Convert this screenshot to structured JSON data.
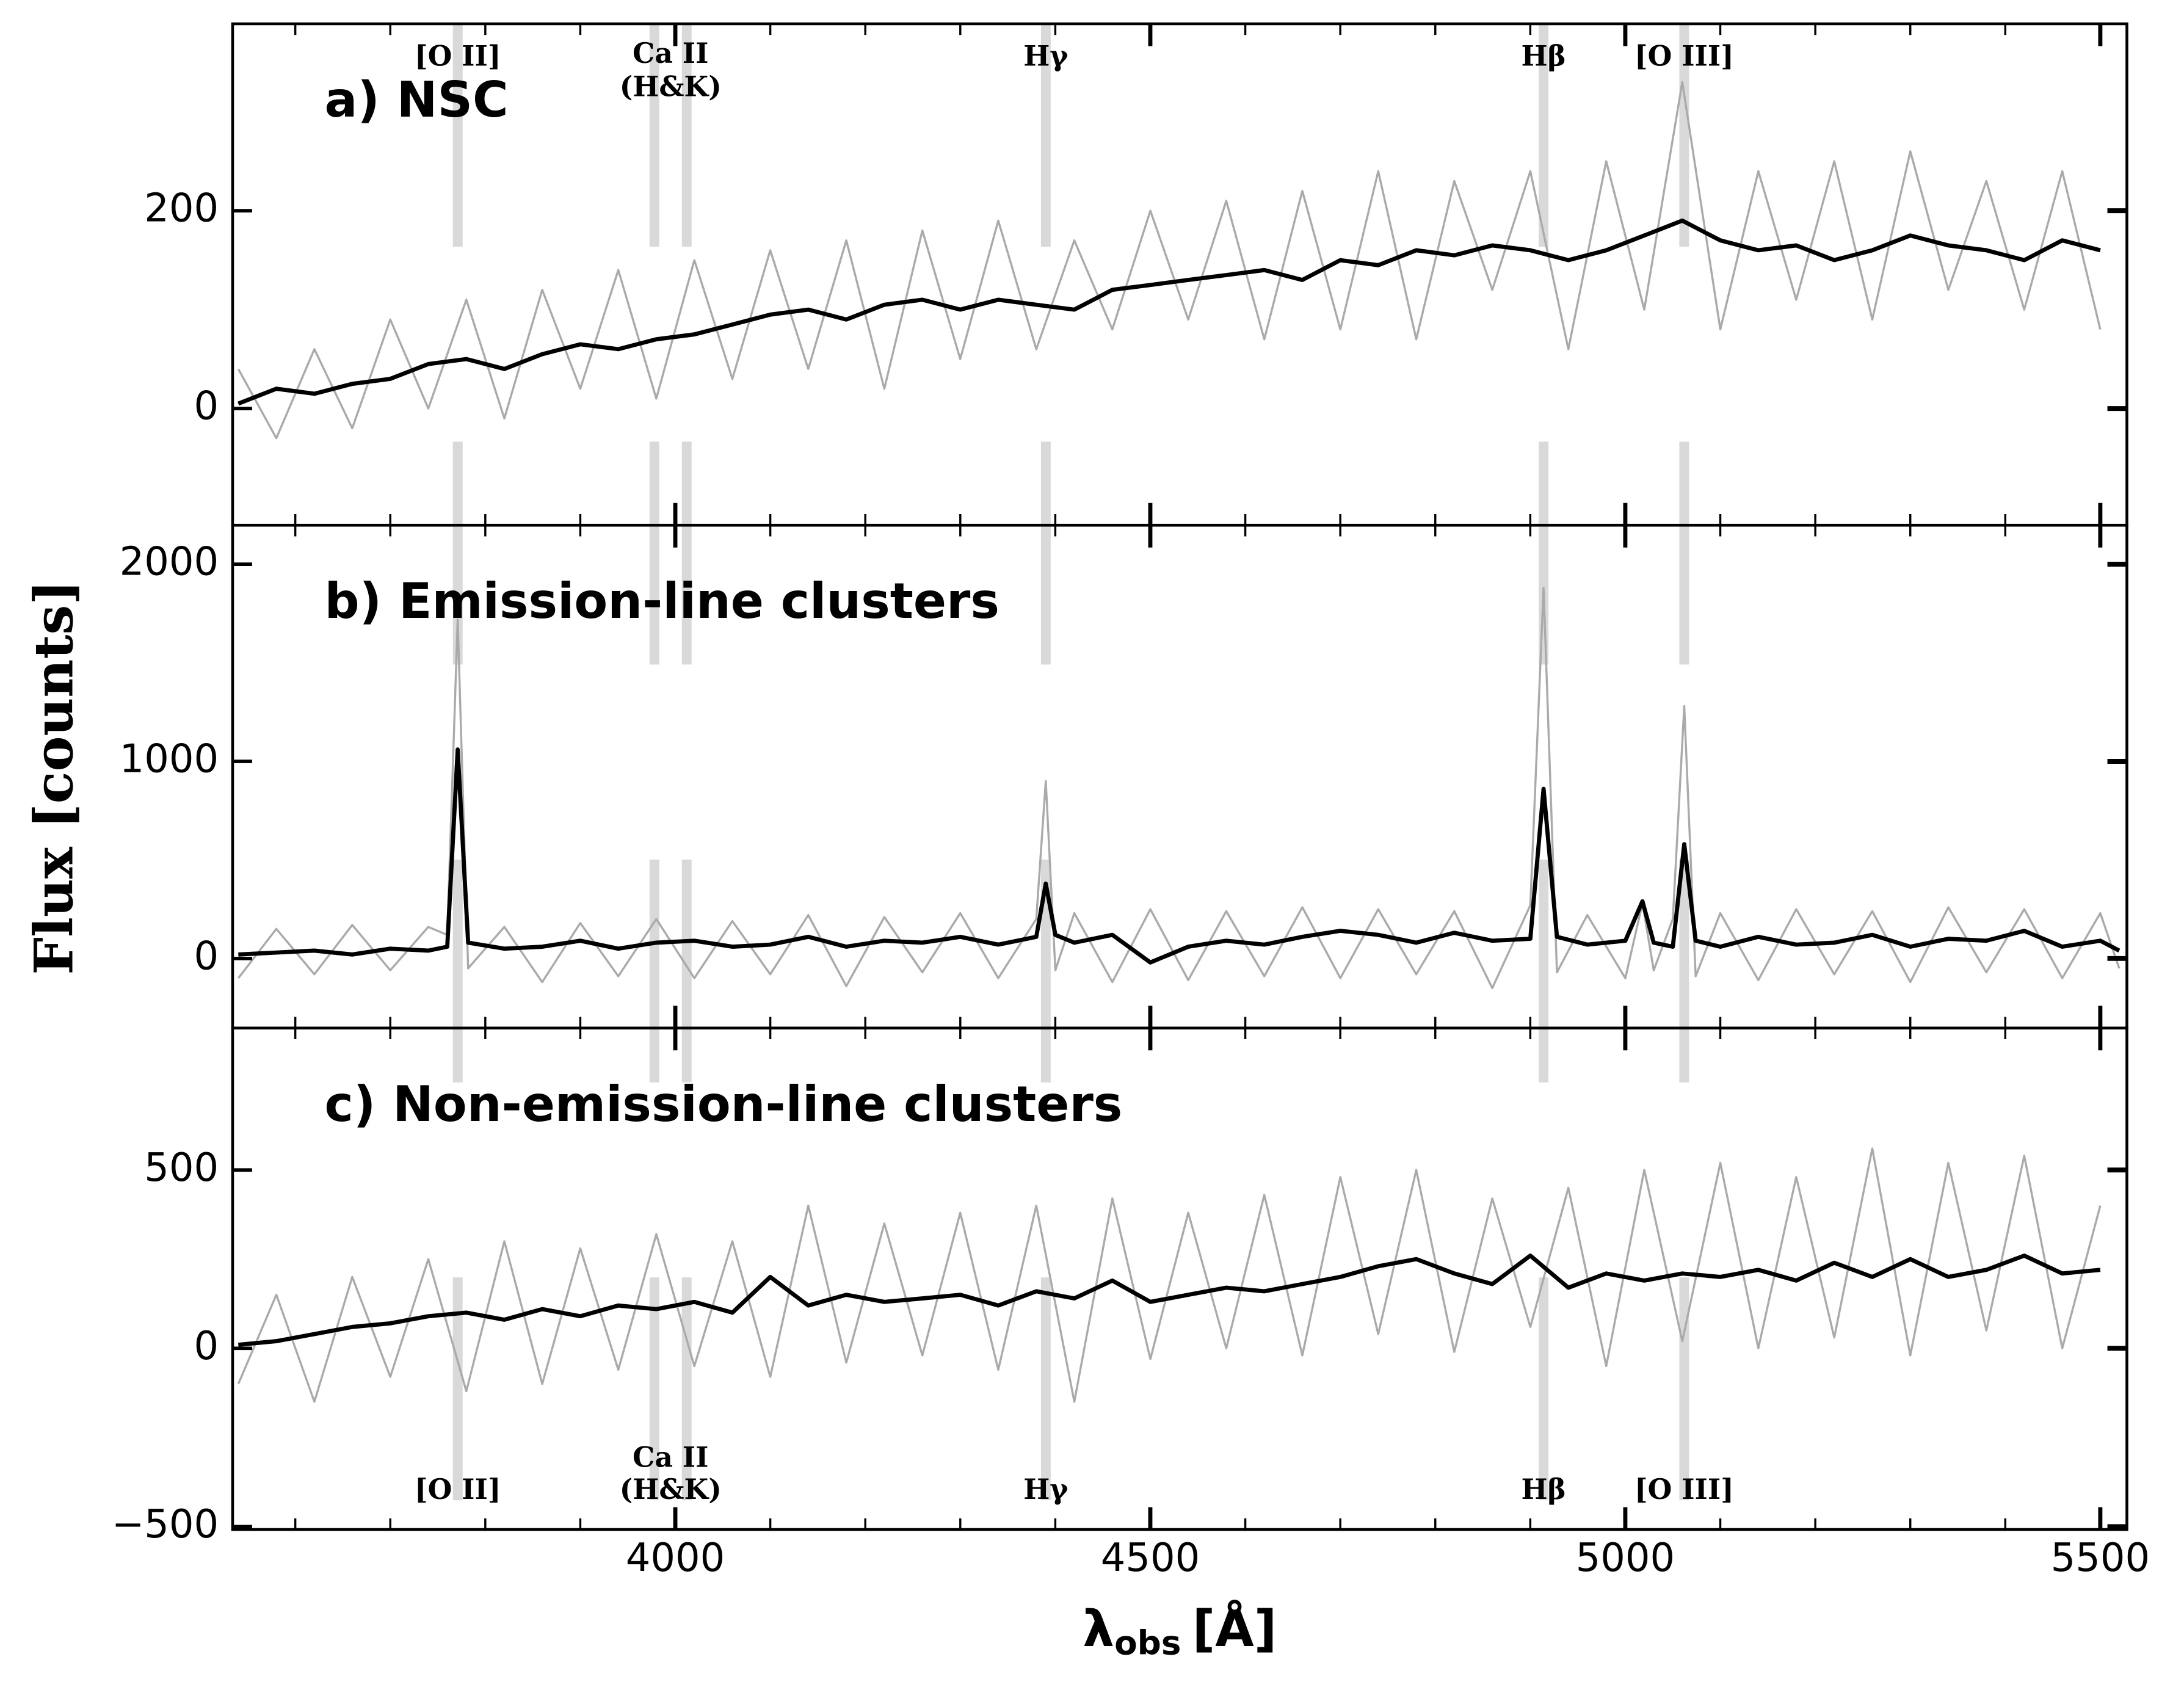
{
  "figure": {
    "ylabel": "Flux [counts]",
    "xlabel": {
      "symbol": "λ",
      "subscript": "obs",
      "unit": "[Å]"
    },
    "line_markers": [
      {
        "label": [
          "[O II]"
        ],
        "x": [
          3771
        ]
      },
      {
        "label": [
          "Ca II",
          "(H&K)"
        ],
        "x": [
          3978,
          4012
        ]
      },
      {
        "label": [
          "Hγ"
        ],
        "x": [
          4390
        ]
      },
      {
        "label": [
          "Hβ"
        ],
        "x": [
          4914
        ]
      },
      {
        "label": [
          "[O III]"
        ],
        "x": [
          5062
        ]
      }
    ],
    "marker_color": "#d9d9d9"
  },
  "chart_data": [
    {
      "type": "line",
      "title": "a) NSC",
      "x": [
        3540,
        3580,
        3620,
        3660,
        3700,
        3740,
        3780,
        3820,
        3860,
        3900,
        3940,
        3980,
        4020,
        4060,
        4100,
        4140,
        4180,
        4220,
        4260,
        4300,
        4340,
        4380,
        4420,
        4460,
        4500,
        4540,
        4580,
        4620,
        4660,
        4700,
        4740,
        4780,
        4820,
        4860,
        4900,
        4940,
        4980,
        5020,
        5060,
        5100,
        5140,
        5180,
        5220,
        5260,
        5300,
        5340,
        5380,
        5420,
        5460,
        5500
      ],
      "series": [
        {
          "color": "#aaaaaa",
          "values": [
            40,
            -30,
            60,
            -20,
            90,
            0,
            110,
            -10,
            120,
            20,
            140,
            10,
            150,
            30,
            160,
            40,
            170,
            20,
            180,
            50,
            190,
            60,
            170,
            80,
            200,
            90,
            210,
            70,
            220,
            80,
            240,
            70,
            230,
            120,
            240,
            60,
            250,
            100,
            330,
            80,
            240,
            110,
            250,
            90,
            260,
            120,
            230,
            100,
            240,
            80
          ]
        },
        {
          "color": "#000000",
          "values": [
            5,
            20,
            15,
            25,
            30,
            45,
            50,
            40,
            55,
            65,
            60,
            70,
            75,
            85,
            95,
            100,
            90,
            105,
            110,
            100,
            110,
            105,
            100,
            120,
            125,
            130,
            135,
            140,
            130,
            150,
            145,
            160,
            155,
            165,
            160,
            150,
            160,
            175,
            190,
            170,
            160,
            165,
            150,
            160,
            175,
            165,
            160,
            150,
            170,
            160
          ]
        }
      ],
      "xlim": [
        3534,
        5528
      ],
      "ylim": [
        -118,
        389
      ],
      "yticks": [
        0,
        200
      ],
      "xticks": [
        4000,
        4500,
        5000,
        5500
      ],
      "xminorticks": [
        3600,
        3700,
        3800,
        3900,
        4100,
        4200,
        4300,
        4400,
        4600,
        4700,
        4800,
        4900,
        5100,
        5200,
        5300,
        5400
      ]
    },
    {
      "type": "line",
      "title": "b) Emission-line clusters",
      "x": [
        3540,
        3580,
        3620,
        3660,
        3700,
        3740,
        3760,
        3771,
        3782,
        3820,
        3860,
        3900,
        3940,
        3980,
        4020,
        4060,
        4100,
        4140,
        4180,
        4220,
        4260,
        4300,
        4340,
        4380,
        4390,
        4400,
        4420,
        4460,
        4500,
        4540,
        4580,
        4620,
        4660,
        4700,
        4740,
        4780,
        4820,
        4860,
        4900,
        4914,
        4928,
        4960,
        5000,
        5018,
        5030,
        5050,
        5062,
        5074,
        5100,
        5140,
        5180,
        5220,
        5260,
        5300,
        5340,
        5380,
        5420,
        5460,
        5500,
        5520
      ],
      "series": [
        {
          "color": "#aaaaaa",
          "values": [
            -100,
            150,
            -80,
            170,
            -60,
            160,
            120,
            1720,
            -50,
            160,
            -120,
            180,
            -90,
            200,
            -100,
            190,
            -80,
            220,
            -140,
            210,
            -70,
            230,
            -100,
            200,
            900,
            -60,
            230,
            -120,
            250,
            -110,
            240,
            -90,
            260,
            -100,
            250,
            -80,
            240,
            -150,
            270,
            1880,
            -70,
            220,
            -100,
            280,
            -60,
            200,
            1280,
            -90,
            230,
            -110,
            250,
            -80,
            240,
            -120,
            260,
            -70,
            250,
            -100,
            230,
            -50
          ]
        },
        {
          "color": "#000000",
          "values": [
            20,
            30,
            40,
            20,
            50,
            40,
            60,
            1060,
            80,
            50,
            60,
            90,
            50,
            80,
            90,
            60,
            70,
            110,
            60,
            90,
            80,
            110,
            70,
            110,
            380,
            120,
            80,
            120,
            -20,
            60,
            90,
            70,
            110,
            140,
            120,
            80,
            130,
            90,
            100,
            860,
            110,
            70,
            90,
            290,
            80,
            60,
            580,
            90,
            60,
            110,
            70,
            80,
            120,
            60,
            100,
            90,
            140,
            60,
            90,
            40
          ]
        }
      ],
      "xlim": [
        3534,
        5528
      ],
      "ylim": [
        -353,
        2198
      ],
      "yticks": [
        0,
        1000,
        2000
      ],
      "xticks": [
        4000,
        4500,
        5000,
        5500
      ],
      "xminorticks": [
        3600,
        3700,
        3800,
        3900,
        4100,
        4200,
        4300,
        4400,
        4600,
        4700,
        4800,
        4900,
        5100,
        5200,
        5300,
        5400
      ]
    },
    {
      "type": "line",
      "title": "c) Non-emission-line clusters",
      "x": [
        3540,
        3580,
        3620,
        3660,
        3700,
        3740,
        3780,
        3820,
        3860,
        3900,
        3940,
        3980,
        4020,
        4060,
        4100,
        4140,
        4180,
        4220,
        4260,
        4300,
        4340,
        4380,
        4420,
        4460,
        4500,
        4540,
        4580,
        4620,
        4660,
        4700,
        4740,
        4780,
        4820,
        4860,
        4900,
        4940,
        4980,
        5020,
        5060,
        5100,
        5140,
        5180,
        5220,
        5260,
        5300,
        5340,
        5380,
        5420,
        5460,
        5500
      ],
      "series": [
        {
          "color": "#aaaaaa",
          "values": [
            -100,
            150,
            -150,
            200,
            -80,
            250,
            -120,
            300,
            -100,
            280,
            -60,
            320,
            -50,
            300,
            -80,
            400,
            -40,
            350,
            -20,
            380,
            -60,
            400,
            -150,
            420,
            -30,
            380,
            0,
            430,
            -20,
            480,
            40,
            500,
            -10,
            420,
            60,
            450,
            -50,
            500,
            20,
            520,
            0,
            480,
            30,
            560,
            -20,
            520,
            50,
            540,
            0,
            400
          ]
        },
        {
          "color": "#000000",
          "values": [
            10,
            20,
            40,
            60,
            70,
            90,
            100,
            80,
            110,
            90,
            120,
            110,
            130,
            100,
            200,
            120,
            150,
            130,
            140,
            150,
            120,
            160,
            140,
            190,
            130,
            150,
            170,
            160,
            180,
            200,
            230,
            250,
            210,
            180,
            260,
            170,
            210,
            190,
            210,
            200,
            220,
            190,
            240,
            200,
            250,
            200,
            220,
            260,
            210,
            220
          ]
        }
      ],
      "xlim": [
        3534,
        5528
      ],
      "ylim": [
        -508,
        898
      ],
      "yticks": [
        {
          "value": -500,
          "label": "−500"
        },
        0,
        500
      ],
      "xticks": [
        {
          "value": 4000,
          "label": "4000"
        },
        {
          "value": 4500,
          "label": "4500"
        },
        {
          "value": 5000,
          "label": "5000"
        },
        {
          "value": 5500,
          "label": "5500"
        }
      ],
      "xminorticks": [
        3600,
        3700,
        3800,
        3900,
        4100,
        4200,
        4300,
        4400,
        4600,
        4700,
        4800,
        4900,
        5100,
        5200,
        5300,
        5400
      ]
    }
  ]
}
